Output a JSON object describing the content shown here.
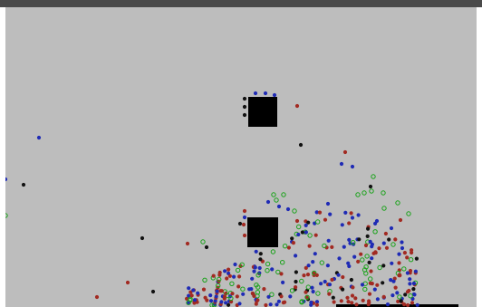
{
  "window": {
    "title": ""
  },
  "simulation": {
    "background_color": "#bdbdbd",
    "obstacle_color": "#000000",
    "particle_types": [
      {
        "name": "black",
        "color": "#111111",
        "style": "filled"
      },
      {
        "name": "blue",
        "color": "#1f2bb5",
        "style": "filled"
      },
      {
        "name": "red",
        "color": "#a22a22",
        "style": "filled"
      },
      {
        "name": "green",
        "color": "#18a218",
        "style": "ring"
      }
    ],
    "obstacles": [
      {
        "name": "upper-block"
      },
      {
        "name": "lower-block"
      }
    ]
  }
}
